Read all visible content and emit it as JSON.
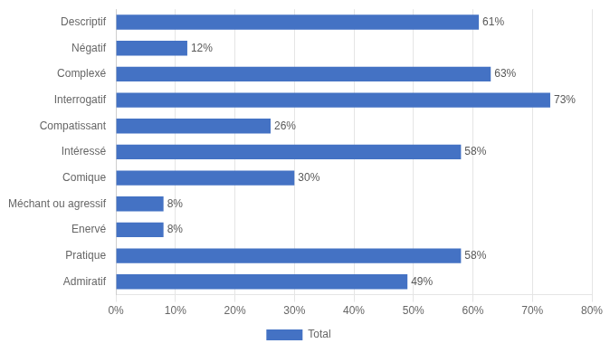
{
  "chart_data": {
    "type": "bar",
    "orientation": "horizontal",
    "categories": [
      "Descriptif",
      "Négatif",
      "Complexé",
      "Interrogatif",
      "Compatissant",
      "Intéressé",
      "Comique",
      "Méchant ou agressif",
      "Enervé",
      "Pratique",
      "Admiratif"
    ],
    "series": [
      {
        "name": "Total",
        "color": "#4472c4",
        "values": [
          61,
          12,
          63,
          73,
          26,
          58,
          30,
          8,
          8,
          58,
          49
        ],
        "value_labels": [
          "61%",
          "12%",
          "63%",
          "73%",
          "26%",
          "58%",
          "30%",
          "8%",
          "8%",
          "58%",
          "49%"
        ]
      }
    ],
    "xlim": [
      0,
      80
    ],
    "xticks": [
      {
        "value": 0,
        "label": "0%"
      },
      {
        "value": 10,
        "label": "10%"
      },
      {
        "value": 20,
        "label": "20%"
      },
      {
        "value": 30,
        "label": "30%"
      },
      {
        "value": 40,
        "label": "40%"
      },
      {
        "value": 50,
        "label": "50%"
      },
      {
        "value": 60,
        "label": "60%"
      },
      {
        "value": 70,
        "label": "70%"
      },
      {
        "value": 80,
        "label": "80%"
      }
    ],
    "grid": true,
    "data_labels": true,
    "legend": "bottom"
  }
}
